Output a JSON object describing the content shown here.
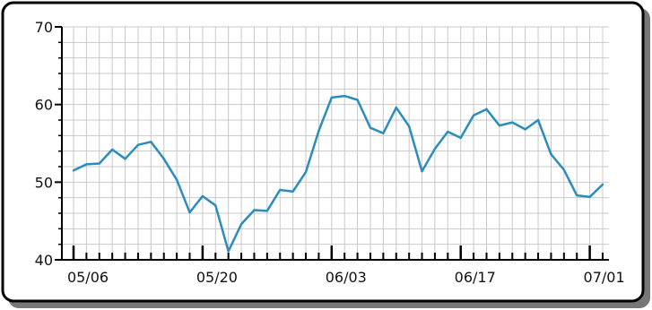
{
  "chart_data": {
    "type": "line",
    "title": "",
    "xlabel": "",
    "ylabel": "",
    "ylim": [
      40,
      70
    ],
    "y_ticks": [
      40,
      50,
      60,
      70
    ],
    "x_tick_labels": [
      "05/06",
      "05/20",
      "06/03",
      "06/17",
      "07/01"
    ],
    "grid": true,
    "legend": "none",
    "colors": {
      "line": "#2b8cbf",
      "grid": "#c8c8c8",
      "frame": "#000000",
      "shadow": "#777777"
    },
    "series": [
      {
        "values": [
          51.5,
          52.3,
          52.4,
          54.2,
          53.0,
          54.8,
          55.2,
          53.0,
          50.3,
          46.1,
          48.2,
          47.0,
          41.1,
          44.6,
          46.4,
          46.3,
          49.0,
          48.8,
          51.3,
          56.6,
          60.9,
          61.1,
          60.6,
          57.0,
          56.3,
          59.6,
          57.2,
          51.4,
          54.3,
          56.5,
          55.7,
          58.6,
          59.4,
          57.3,
          57.7,
          56.8,
          58.0,
          53.6,
          51.6,
          48.3,
          48.1,
          49.7
        ]
      }
    ]
  }
}
